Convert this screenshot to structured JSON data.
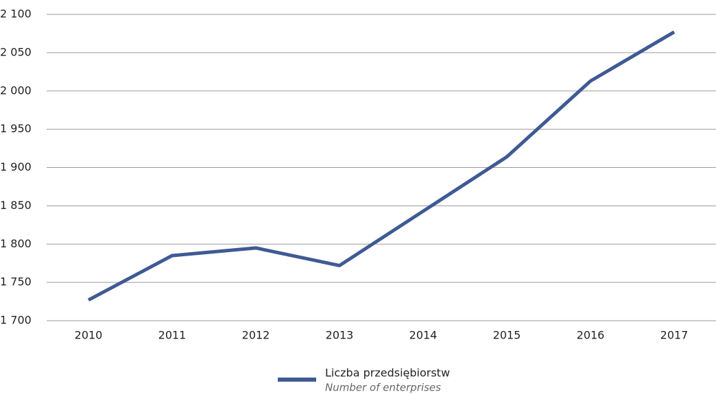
{
  "chart_data": {
    "type": "line",
    "categories": [
      "2010",
      "2011",
      "2012",
      "2013",
      "2014",
      "2015",
      "2016",
      "2017"
    ],
    "series": [
      {
        "name": "Liczba przedsiębiorstw",
        "name_en": "Number of enterprises",
        "color": "#3f5a94",
        "values": [
          1727,
          1785,
          1795,
          1772,
          1843,
          1914,
          2013,
          2077
        ]
      }
    ],
    "ylim": [
      1700,
      2100
    ],
    "yticks": [
      {
        "value": 1700,
        "label": "1 700"
      },
      {
        "value": 1750,
        "label": "1 750"
      },
      {
        "value": 1800,
        "label": "1 800"
      },
      {
        "value": 1850,
        "label": "1 850"
      },
      {
        "value": 1900,
        "label": "1 900"
      },
      {
        "value": 1950,
        "label": "1 950"
      },
      {
        "value": 2000,
        "label": "2 000"
      },
      {
        "value": 2050,
        "label": "2 050"
      },
      {
        "value": 2100,
        "label": "2 100"
      }
    ],
    "grid": true,
    "legend": "bottom"
  }
}
